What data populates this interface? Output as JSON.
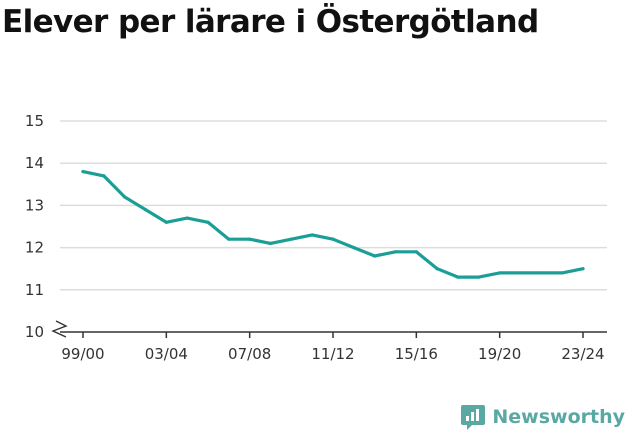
{
  "title": "Elever per lärare i Östergötland",
  "brand": {
    "name": "Newsworthy",
    "icon": "newsworthy-logo-icon",
    "color": "#5aa8a3"
  },
  "colors": {
    "line": "#1a9e95",
    "grid": "#dddddd",
    "axis": "#333333"
  },
  "chart_data": {
    "type": "line",
    "title": "Elever per lärare i Östergötland",
    "xlabel": "",
    "ylabel": "",
    "ylim": [
      10,
      15
    ],
    "yticks": [
      10,
      11,
      12,
      13,
      14,
      15
    ],
    "y_axis_break": true,
    "grid": true,
    "x": [
      "99/00",
      "00/01",
      "01/02",
      "02/03",
      "03/04",
      "04/05",
      "05/06",
      "06/07",
      "07/08",
      "08/09",
      "09/10",
      "10/11",
      "11/12",
      "12/13",
      "13/14",
      "14/15",
      "15/16",
      "16/17",
      "17/18",
      "18/19",
      "19/20",
      "20/21",
      "21/22",
      "22/23",
      "23/24"
    ],
    "xtick_labels": [
      "99/00",
      "03/04",
      "07/08",
      "11/12",
      "15/16",
      "19/20",
      "23/24"
    ],
    "series": [
      {
        "values": [
          13.8,
          13.7,
          13.2,
          12.9,
          12.6,
          12.7,
          12.6,
          12.2,
          12.2,
          12.1,
          12.2,
          12.3,
          12.2,
          12.0,
          11.8,
          11.9,
          11.9,
          11.5,
          11.3,
          11.3,
          11.4,
          11.4,
          11.4,
          11.4,
          11.5
        ]
      }
    ]
  }
}
